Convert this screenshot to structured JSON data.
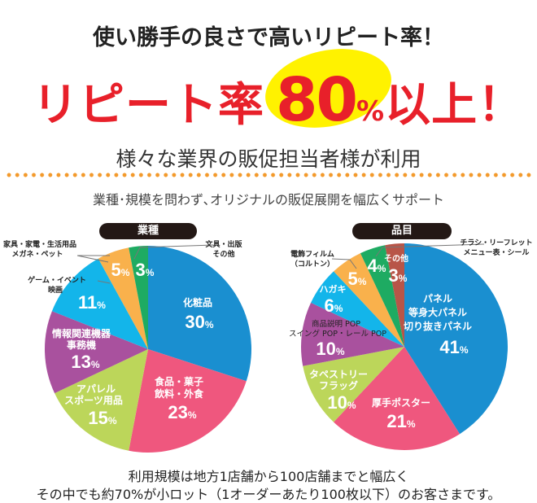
{
  "header": {
    "title": "使い勝手の良さで高いリピート率！",
    "hero_prefix": "リピート率",
    "hero_number": "80",
    "hero_percent": "%",
    "hero_suffix": "以上！",
    "subtitle": "様々な業界の販促担当者様が利用",
    "tagline": "業種･規模を問わず､オリジナルの販促展開を幅広くサポート"
  },
  "colors": {
    "blue": "#1a8fd0",
    "pink": "#ef577e",
    "lime": "#bcd65a",
    "purple": "#a9519e",
    "cyan": "#13b5ea",
    "orange": "#f9b14c",
    "green": "#1eab62",
    "brown": "#b85548",
    "hero_red": "#e8202a",
    "hero_highlight": "#fff200",
    "dots": "#f39a2c"
  },
  "chart_data": [
    {
      "type": "pie",
      "title": "業種",
      "start": "top",
      "direction": "clockwise",
      "slices": [
        {
          "label": [
            "化粧品"
          ],
          "value": 30,
          "color": "#1a8fd0"
        },
        {
          "label": [
            "食品・菓子",
            "飲料・外食"
          ],
          "value": 23,
          "color": "#ef577e"
        },
        {
          "label": [
            "アパレル",
            "スポーツ用品"
          ],
          "value": 15,
          "color": "#bcd65a"
        },
        {
          "label": [
            "情報関連機器",
            "事務機"
          ],
          "value": 13,
          "color": "#a9519e"
        },
        {
          "label": [
            "ゲーム・イベント",
            "映画"
          ],
          "value": 11,
          "color": "#13b5ea"
        },
        {
          "label": [
            "家具・家電・生活用品",
            "メガネ・ペット"
          ],
          "value": 5,
          "color": "#f9b14c"
        },
        {
          "label": [
            "文具・出版",
            "その他"
          ],
          "value": 3,
          "color": "#1eab62"
        }
      ]
    },
    {
      "type": "pie",
      "title": "品目",
      "start": "top",
      "direction": "clockwise",
      "slices": [
        {
          "label": [
            "パネル",
            "等身大パネル",
            "切り抜きパネル"
          ],
          "value": 41,
          "color": "#1a8fd0"
        },
        {
          "label": [
            "厚手ポスター"
          ],
          "value": 21,
          "color": "#ef577e"
        },
        {
          "label": [
            "タペストリー",
            "フラッグ"
          ],
          "value": 10,
          "color": "#bcd65a"
        },
        {
          "label": [
            "商品説明 POP",
            "スイング POP・レール POP"
          ],
          "value": 10,
          "color": "#a9519e"
        },
        {
          "label": [
            "ハガキ"
          ],
          "value": 6,
          "color": "#13b5ea"
        },
        {
          "label": [
            "電飾フィルム",
            "（コルトン）"
          ],
          "value": 5,
          "color": "#f9b14c"
        },
        {
          "label": [
            "チラシ・リーフレット",
            "メニュー表・シール"
          ],
          "value": 4,
          "color": "#1eab62"
        },
        {
          "label": [
            "その他"
          ],
          "value": 3,
          "color": "#b85548"
        }
      ]
    }
  ],
  "percent_unit": "%",
  "footer": {
    "line1": "利用規模は地方1店舗から100店舗までと幅広く",
    "line2": "その中でも約70%が小ロット（1オーダーあたり100枚以下）のお客さまです。"
  }
}
